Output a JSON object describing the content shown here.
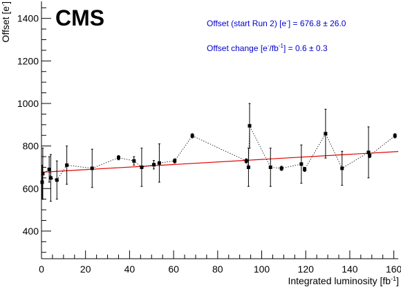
{
  "colors": {
    "axis": "#000000",
    "data": "#000000",
    "fit": "#e00000",
    "annotation": "#0000cc"
  },
  "chart_data": {
    "type": "scatter",
    "logo": "CMS",
    "xlabel_main": "Integrated luminosity [fb",
    "xlabel_sup": "-1",
    "xlabel_end": "]",
    "ylabel_main": "Offset [e",
    "ylabel_sup": "-",
    "ylabel_end": "]",
    "xlim": [
      0,
      162
    ],
    "ylim": [
      270,
      1480
    ],
    "grid": false,
    "x_ticks": [
      0,
      20,
      40,
      60,
      80,
      100,
      120,
      140,
      160
    ],
    "y_ticks": [
      400,
      600,
      800,
      1000,
      1200,
      1400
    ],
    "annotations": [
      {
        "pre": "Offset (start Run 2) [e",
        "sup": "-",
        "post": "] = 676.8 ± 26.0"
      },
      {
        "pre": "Offset change [e",
        "sup": "-",
        "mid": "/fb",
        "sup2": "-1",
        "post": "] = 0.6 ± 0.3"
      }
    ],
    "fit": {
      "intercept": 676.8,
      "slope": 0.6,
      "x_range": [
        0,
        162
      ]
    },
    "series": [
      {
        "points": [
          {
            "x": 0.3,
            "y": 630,
            "err": 80
          },
          {
            "x": 0.6,
            "y": 670,
            "err": 120
          },
          {
            "x": 3.5,
            "y": 690,
            "err": 60
          },
          {
            "x": 4.2,
            "y": 650,
            "err": 110
          },
          {
            "x": 7,
            "y": 640,
            "err": 90
          },
          {
            "x": 11.5,
            "y": 710,
            "err": 90
          },
          {
            "x": 23,
            "y": 695,
            "err": 90
          },
          {
            "x": 35,
            "y": 745,
            "err": 10
          },
          {
            "x": 42,
            "y": 730,
            "err": 20
          },
          {
            "x": 45.5,
            "y": 700,
            "err": 90
          },
          {
            "x": 51,
            "y": 712,
            "err": 20
          },
          {
            "x": 53.5,
            "y": 720,
            "err": 90
          },
          {
            "x": 60.5,
            "y": 730,
            "err": 10
          },
          {
            "x": 68.5,
            "y": 848,
            "err": 10
          },
          {
            "x": 93,
            "y": 730,
            "err": 10
          },
          {
            "x": 94,
            "y": 700,
            "err": 90
          },
          {
            "x": 94.5,
            "y": 895,
            "err": 105
          },
          {
            "x": 104,
            "y": 700,
            "err": 90
          },
          {
            "x": 109,
            "y": 695,
            "err": 10
          },
          {
            "x": 118,
            "y": 715,
            "err": 90
          },
          {
            "x": 119.5,
            "y": 690,
            "err": 10
          },
          {
            "x": 129,
            "y": 858,
            "err": 115
          },
          {
            "x": 136.5,
            "y": 695,
            "err": 80
          },
          {
            "x": 148.5,
            "y": 770,
            "err": 120
          },
          {
            "x": 149,
            "y": 755,
            "err": 10
          },
          {
            "x": 160.5,
            "y": 848,
            "err": 10
          }
        ]
      }
    ]
  }
}
